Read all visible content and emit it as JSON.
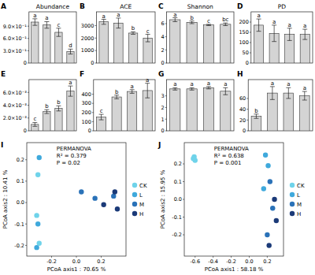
{
  "chart_data": [
    {
      "type": "bar",
      "panel_label": "A",
      "title": "Abundance",
      "categories": [
        null,
        null,
        null,
        null
      ],
      "values": [
        1.0,
        0.93,
        0.75,
        0.28
      ],
      "errors": [
        0.08,
        0.08,
        0.1,
        0.06
      ],
      "letters": [
        "a",
        "a",
        "c",
        "d"
      ],
      "color": "#d4d4d4",
      "ylim": [
        0,
        1.25
      ],
      "tick_labels": "y",
      "yticks": [
        0,
        {
          "value": 0.3,
          "label": "3.0×10⁻¹"
        },
        {
          "value": 0.6,
          "label": "6.0×10⁻¹"
        },
        {
          "value": 0.9,
          "label": "9.0×10⁻¹"
        }
      ]
    },
    {
      "type": "bar",
      "panel_label": "B",
      "title": "ACE",
      "categories": [
        null,
        null,
        null,
        null
      ],
      "values": [
        3300,
        3200,
        2400,
        2000
      ],
      "errors": [
        200,
        400,
        100,
        300
      ],
      "letters": [
        "a",
        "a",
        "b",
        "c"
      ],
      "color": "#d4d4d4",
      "ylim": [
        0,
        4100
      ],
      "tick_labels": "y",
      "yticks": [
        0,
        1000,
        2000,
        3000
      ]
    },
    {
      "type": "bar",
      "panel_label": "C",
      "title": "Shannon",
      "categories": [
        null,
        null,
        null,
        null
      ],
      "values": [
        6.6,
        6.2,
        5.8,
        5.9
      ],
      "errors": [
        0.3,
        0.2,
        0.1,
        0.2
      ],
      "letters": [
        "a",
        "b",
        "c",
        "bc"
      ],
      "color": "#d4d4d4",
      "ylim": [
        0,
        7.8
      ],
      "tick_labels": "y",
      "yticks": [
        0,
        2,
        4,
        6
      ]
    },
    {
      "type": "bar",
      "panel_label": "D",
      "title": "PD",
      "categories": [
        null,
        null,
        null,
        null
      ],
      "values": [
        185,
        145,
        140,
        140
      ],
      "errors": [
        30,
        40,
        30,
        25
      ],
      "letters": [
        "a",
        "a",
        "a",
        "a"
      ],
      "color": "#d4d4d4",
      "ylim": [
        0,
        250
      ],
      "tick_labels": "y",
      "yticks": [
        0,
        50,
        100,
        150,
        200
      ]
    },
    {
      "type": "bar",
      "panel_label": "E",
      "categories": [
        null,
        null,
        null,
        null
      ],
      "values": [
        0.001,
        0.003,
        0.0035,
        0.0062
      ],
      "errors": [
        0.0003,
        0.0003,
        0.0004,
        0.0008
      ],
      "letters": [
        "c",
        "b",
        "b",
        "a"
      ],
      "color": "#d4d4d4",
      "ylim": [
        0,
        0.008
      ],
      "tick_labels": "y",
      "yticks": [
        0,
        {
          "value": 0.002,
          "label": "2.0×10⁻³"
        },
        {
          "value": 0.004,
          "label": "4.0×10⁻³"
        },
        {
          "value": 0.006,
          "label": "6.0×10⁻³"
        }
      ]
    },
    {
      "type": "bar",
      "panel_label": "F",
      "categories": [
        null,
        null,
        null,
        null
      ],
      "values": [
        150,
        370,
        430,
        440
      ],
      "errors": [
        30,
        20,
        20,
        80
      ],
      "letters": [
        "c",
        "b",
        "a",
        "a"
      ],
      "color": "#d4d4d4",
      "ylim": [
        0,
        560
      ],
      "tick_labels": "y",
      "yticks": [
        0,
        100,
        200,
        300,
        400
      ]
    },
    {
      "type": "bar",
      "panel_label": "G",
      "categories": [
        null,
        null,
        null,
        null
      ],
      "values": [
        3.6,
        3.6,
        3.7,
        3.4
      ],
      "errors": [
        0.1,
        0.1,
        0.1,
        0.3
      ],
      "letters": [
        "a",
        "a",
        "a",
        "a"
      ],
      "color": "#d4d4d4",
      "ylim": [
        0,
        4.4
      ],
      "tick_labels": "y",
      "yticks": [
        0,
        1,
        2,
        3
      ]
    },
    {
      "type": "bar",
      "panel_label": "H",
      "categories": [
        null,
        null,
        null,
        null
      ],
      "values": [
        27,
        70,
        70,
        65
      ],
      "errors": [
        4,
        12,
        10,
        8
      ],
      "letters": [
        "b",
        "a",
        "a",
        "a"
      ],
      "color": "#d4d4d4",
      "ylim": [
        0,
        95
      ],
      "tick_labels": "y",
      "yticks": [
        0,
        20,
        40,
        60
      ]
    },
    {
      "type": "scatter",
      "panel_label": "I",
      "x_label": "PCoA axis1 : 70.65 %",
      "y_label": "PCoA axis2 : 10.41 %",
      "annotations": [
        "PERMANOVA",
        "R² = 0.379",
        "P = 0.02"
      ],
      "legend": "right",
      "grid": false,
      "xlim": [
        -0.4,
        0.4
      ],
      "ylim": [
        -0.25,
        0.28
      ],
      "xticks": [
        -0.2,
        {
          "value": 0,
          "label": "0.0"
        },
        0.2
      ],
      "yticks": [
        -0.2,
        -0.1,
        {
          "value": 0,
          "label": "0.0"
        },
        0.1,
        0.2
      ],
      "series": [
        {
          "name": "CK",
          "color": "#6fd3ea",
          "x": [
            -0.31,
            -0.3,
            -0.32
          ],
          "values": [
            0.13,
            -0.19,
            -0.06
          ]
        },
        {
          "name": "L",
          "color": "#3fa9dc",
          "x": [
            -0.3,
            -0.31,
            -0.32
          ],
          "values": [
            0.21,
            -0.1,
            -0.21
          ]
        },
        {
          "name": "M",
          "color": "#2a72b8",
          "x": [
            0.04,
            0.15,
            0.3
          ],
          "values": [
            0.05,
            0.02,
            0.03
          ]
        },
        {
          "name": "H",
          "color": "#1b3a78",
          "x": [
            0.22,
            0.31,
            0.33
          ],
          "values": [
            -0.01,
            0.05,
            -0.03
          ]
        }
      ]
    },
    {
      "type": "scatter",
      "panel_label": "J",
      "x_label": "PCoA axis1 : 58.18 %",
      "y_label": "PCoA axis2 : 15.95 %",
      "annotations": [
        "PERMANOVA",
        "R² = 0.638",
        "P = 0.001"
      ],
      "legend": "right",
      "grid": false,
      "xlim": [
        -0.72,
        0.38
      ],
      "ylim": [
        -0.32,
        0.32
      ],
      "xticks": [
        -0.6,
        -0.4,
        -0.2,
        {
          "value": 0,
          "label": "0.0"
        },
        0.2
      ],
      "yticks": [
        -0.2,
        -0.1,
        {
          "value": 0,
          "label": "0.0"
        },
        0.1,
        0.2
      ],
      "series": [
        {
          "name": "CK",
          "color": "#6fd3ea",
          "x": [
            -0.61,
            -0.6,
            -0.62
          ],
          "values": [
            0.24,
            0.22,
            0.23
          ]
        },
        {
          "name": "L",
          "color": "#3fa9dc",
          "x": [
            0.18,
            0.21,
            0.16
          ],
          "values": [
            0.25,
            0.19,
            0.06
          ]
        },
        {
          "name": "M",
          "color": "#2a72b8",
          "x": [
            0.23,
            0.26,
            0.2
          ],
          "values": [
            0.1,
            -0.05,
            -0.2
          ]
        },
        {
          "name": "H",
          "color": "#1b3a78",
          "x": [
            0.28,
            0.3,
            0.22
          ],
          "values": [
            0.0,
            -0.12,
            -0.26
          ]
        }
      ]
    }
  ]
}
